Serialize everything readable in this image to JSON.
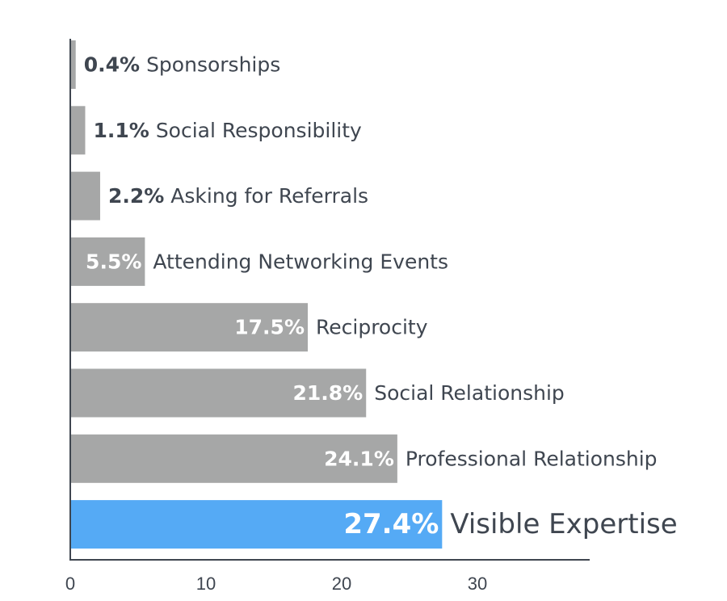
{
  "chart_data": {
    "type": "bar",
    "orientation": "horizontal",
    "categories": [
      "Sponsorships",
      "Social Responsibility",
      "Asking for Referrals",
      "Attending Networking Events",
      "Reciprocity",
      "Social Relationship",
      "Professional Relationship",
      "Visible Expertise"
    ],
    "values": [
      0.4,
      1.1,
      2.2,
      5.5,
      17.5,
      21.8,
      24.1,
      27.4
    ],
    "value_labels": [
      "0.4%",
      "1.1%",
      "2.2%",
      "5.5%",
      "17.5%",
      "21.8%",
      "24.1%",
      "27.4%"
    ],
    "highlight_index": 7,
    "xlim": [
      0,
      37.5
    ],
    "x_ticks": [
      0,
      10,
      20,
      30
    ],
    "x_tick_labels": [
      "0",
      "10",
      "20",
      "30"
    ],
    "title": "",
    "xlabel": "",
    "ylabel": "",
    "grid": false,
    "colors": {
      "bar": "#a6a7a7",
      "highlight": "#55aaf5",
      "axis": "#3f4650",
      "text": "#3f4650",
      "inside_label": "#ffffff"
    }
  }
}
